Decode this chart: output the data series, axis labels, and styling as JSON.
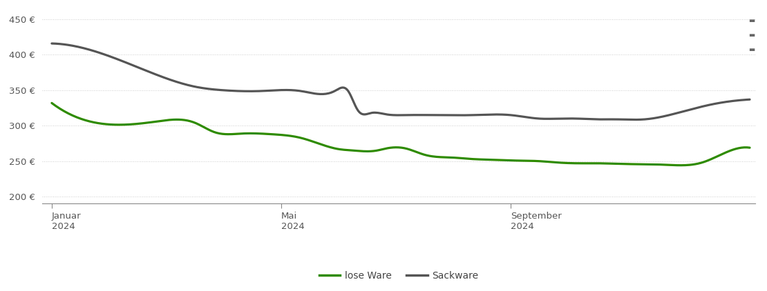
{
  "lose_ware_x": [
    0,
    15,
    55,
    75,
    85,
    100,
    115,
    130,
    150,
    158,
    163,
    170,
    175,
    185,
    195,
    210,
    220,
    230,
    240,
    255,
    265,
    275,
    285,
    300,
    320,
    340,
    355,
    365
  ],
  "lose_ware_y": [
    332,
    310,
    306,
    304,
    291,
    289,
    288,
    283,
    267,
    265,
    264,
    265,
    268,
    268,
    259,
    255,
    253,
    252,
    251,
    250,
    248,
    247,
    247,
    246,
    245,
    248,
    265,
    269
  ],
  "sackware_x": [
    0,
    20,
    50,
    75,
    90,
    110,
    130,
    148,
    155,
    160,
    167,
    175,
    185,
    200,
    220,
    240,
    255,
    265,
    275,
    285,
    295,
    310,
    330,
    345,
    360,
    365
  ],
  "sackware_y": [
    416,
    407,
    377,
    355,
    350,
    349,
    349,
    349,
    349,
    322,
    318,
    316,
    315,
    315,
    315,
    315,
    310,
    310,
    310,
    309,
    309,
    309,
    320,
    330,
    336,
    337
  ],
  "lose_ware_color": "#2e8b00",
  "sackware_color": "#555555",
  "background_color": "#ffffff",
  "grid_color": "#cccccc",
  "grid_style": "dotted",
  "yticks": [
    200,
    250,
    300,
    350,
    400,
    450
  ],
  "xtick_labels": [
    "Januar\n2024",
    "Mai\n2024",
    "September\n2024"
  ],
  "xtick_positions": [
    0,
    120,
    240
  ],
  "legend_labels": [
    "lose Ware",
    "Sackware"
  ],
  "ylim": [
    190,
    465
  ],
  "xlim": [
    -5,
    368
  ]
}
